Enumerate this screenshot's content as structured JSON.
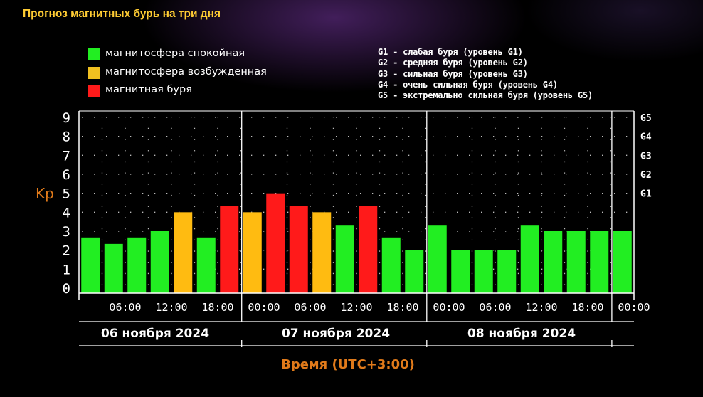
{
  "page": {
    "title": "Прогноз магнитных бурь на три дня"
  },
  "legend": [
    {
      "label": "магнитосфера спокойная",
      "color": "#22ee22"
    },
    {
      "label": "магнитосфера возбужденная",
      "color": "#f0c020"
    },
    {
      "label": "магнитная буря",
      "color": "#ff1a1a"
    }
  ],
  "g_levels": [
    "G1 - слабая буря (уровень G1)",
    "G2 - средняя буря (уровень G2)",
    "G3 - сильная буря (уровень G3)",
    "G4 - очень сильная буря (уровень G4)",
    "G5 - экстремально сильная буря (уровень G5)"
  ],
  "chart_data": {
    "type": "bar",
    "ylabel": "Kp",
    "xlabel": "Время (UTC+3:00)",
    "ylim": [
      0,
      9
    ],
    "yticks": [
      "0",
      "1",
      "2",
      "3",
      "4",
      "5",
      "6",
      "7",
      "8",
      "9"
    ],
    "g_ticks": [
      {
        "label": "G1",
        "value": 5
      },
      {
        "label": "G2",
        "value": 6
      },
      {
        "label": "G3",
        "value": 7
      },
      {
        "label": "G4",
        "value": 8
      },
      {
        "label": "G5",
        "value": 9
      }
    ],
    "x_tick_labels": [
      "06:00",
      "12:00",
      "18:00",
      "00:00",
      "06:00",
      "12:00",
      "18:00",
      "00:00",
      "06:00",
      "12:00",
      "18:00",
      "00:00"
    ],
    "days": [
      "06 ноября 2024",
      "07 ноября 2024",
      "08 ноября 2024"
    ],
    "grid": true,
    "colors": {
      "quiet": "#22ee22",
      "active": "#ffbb11",
      "storm": "#ff1a1a"
    },
    "values": [
      2.67,
      2.33,
      2.67,
      3.0,
      4.0,
      2.67,
      4.33,
      4.0,
      5.0,
      4.33,
      4.0,
      3.33,
      4.33,
      2.67,
      2.0,
      3.33,
      2.0,
      2.0,
      2.0,
      3.33,
      3.0,
      3.0,
      3.0,
      3.0
    ],
    "levels": [
      "quiet",
      "quiet",
      "quiet",
      "quiet",
      "active",
      "quiet",
      "storm",
      "active",
      "storm",
      "storm",
      "active",
      "quiet",
      "storm",
      "quiet",
      "quiet",
      "quiet",
      "quiet",
      "quiet",
      "quiet",
      "quiet",
      "quiet",
      "quiet",
      "quiet",
      "quiet"
    ]
  }
}
